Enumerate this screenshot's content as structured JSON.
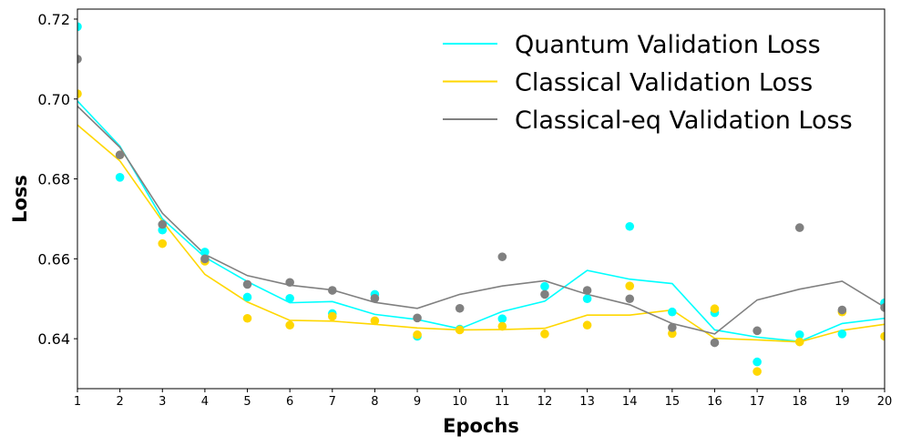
{
  "chart_data": {
    "type": "line",
    "title": "",
    "xlabel": "Epochs",
    "ylabel": "Loss",
    "xlim": [
      1,
      20
    ],
    "ylim": [
      0.6275,
      0.7225
    ],
    "x_ticks": [
      1,
      2,
      3,
      4,
      5,
      6,
      7,
      8,
      9,
      10,
      11,
      12,
      13,
      14,
      15,
      16,
      17,
      18,
      19,
      20
    ],
    "y_ticks": [
      0.64,
      0.66,
      0.68,
      0.7,
      0.72
    ],
    "y_tick_labels": [
      "0.64",
      "0.66",
      "0.68",
      "0.70",
      "0.72"
    ],
    "grid": false,
    "legend_position": "top-right",
    "x": [
      1,
      2,
      3,
      4,
      5,
      6,
      7,
      8,
      9,
      10,
      11,
      12,
      13,
      14,
      15,
      16,
      17,
      18,
      19,
      20
    ],
    "series": [
      {
        "name": "Quantum Validation Loss",
        "color": "#00ffff",
        "line": [
          0.6995,
          0.6882,
          0.67,
          0.6604,
          0.6543,
          0.649,
          0.6493,
          0.6461,
          0.6448,
          0.6425,
          0.6468,
          0.6494,
          0.6571,
          0.6549,
          0.6538,
          0.6422,
          0.6404,
          0.6393,
          0.6438,
          0.6451
        ],
        "points": [
          0.7181,
          0.6804,
          0.6672,
          0.6617,
          0.6504,
          0.6501,
          0.6463,
          0.6511,
          0.6406,
          0.6424,
          0.645,
          0.6531,
          0.65,
          0.6681,
          0.6467,
          0.6465,
          0.6342,
          0.641,
          0.6412,
          0.649
        ]
      },
      {
        "name": "Classical Validation Loss",
        "color": "#ffd700",
        "line": [
          0.6935,
          0.6845,
          0.6694,
          0.6561,
          0.6492,
          0.6446,
          0.6444,
          0.6436,
          0.6427,
          0.6422,
          0.6423,
          0.6426,
          0.6459,
          0.6459,
          0.6472,
          0.6401,
          0.6397,
          0.6392,
          0.6421,
          0.6436
        ],
        "points": [
          0.7013,
          0.686,
          0.6638,
          0.6594,
          0.6451,
          0.6434,
          0.6456,
          0.6445,
          0.641,
          0.6422,
          0.6431,
          0.6412,
          0.6434,
          0.6532,
          0.6413,
          0.6475,
          0.6318,
          0.6392,
          0.6467,
          0.6406
        ]
      },
      {
        "name": "Classical-eq Validation Loss",
        "color": "#808080",
        "line": [
          0.6982,
          0.6879,
          0.6714,
          0.6611,
          0.6558,
          0.6534,
          0.6522,
          0.6491,
          0.6476,
          0.6511,
          0.6532,
          0.6545,
          0.6511,
          0.6485,
          0.6438,
          0.6412,
          0.6497,
          0.6524,
          0.6544,
          0.6479
        ],
        "points": [
          0.71,
          0.686,
          0.6686,
          0.66,
          0.6536,
          0.6541,
          0.6521,
          0.6501,
          0.6452,
          0.6476,
          0.6605,
          0.6511,
          0.6521,
          0.65,
          0.6428,
          0.639,
          0.642,
          0.6678,
          0.6472,
          0.6478
        ]
      }
    ]
  }
}
